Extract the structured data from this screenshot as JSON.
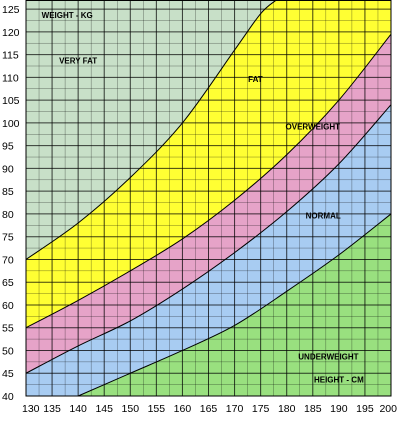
{
  "chart_data": {
    "type": "area",
    "title": "",
    "xlabel": "HEIGHT - CM",
    "ylabel": "WEIGHT - KG",
    "xlim": [
      130,
      200
    ],
    "ylim": [
      40,
      127
    ],
    "x_ticks": [
      130,
      135,
      140,
      145,
      150,
      155,
      160,
      165,
      170,
      175,
      180,
      185,
      190,
      195,
      200
    ],
    "y_ticks": [
      40,
      45,
      50,
      55,
      60,
      65,
      70,
      75,
      80,
      85,
      90,
      95,
      100,
      105,
      110,
      115,
      120,
      125
    ],
    "grid": true,
    "boundaries": [
      {
        "between": [
          "UNDERWEIGHT",
          "NORMAL"
        ],
        "x": [
          140,
          150,
          160,
          170,
          180,
          190,
          200
        ],
        "y": [
          40,
          45,
          50,
          55.5,
          63,
          71,
          80
        ]
      },
      {
        "between": [
          "NORMAL",
          "OVERWEIGHT"
        ],
        "x": [
          130,
          140,
          150,
          160,
          170,
          180,
          190,
          200
        ],
        "y": [
          45,
          51,
          56.5,
          63.5,
          71.5,
          80.5,
          91,
          104
        ]
      },
      {
        "between": [
          "OVERWEIGHT",
          "FAT"
        ],
        "x": [
          130,
          140,
          150,
          160,
          170,
          180,
          190,
          200
        ],
        "y": [
          55,
          61,
          67.5,
          74.5,
          83,
          93,
          105,
          119.5
        ]
      },
      {
        "between": [
          "FAT",
          "VERY FAT"
        ],
        "x": [
          130,
          140,
          150,
          160,
          170,
          175,
          178
        ],
        "y": [
          70,
          78,
          88,
          100,
          116,
          124,
          127
        ]
      }
    ],
    "zones": [
      {
        "name": "UNDERWEIGHT",
        "color": "#99e07f",
        "label_pos": [
          188,
          48
        ]
      },
      {
        "name": "NORMAL",
        "color": "#a8ccf2",
        "label_pos": [
          187,
          79
        ]
      },
      {
        "name": "OVERWEIGHT",
        "color": "#e6a3c8",
        "label_pos": [
          185,
          98.5
        ]
      },
      {
        "name": "FAT",
        "color": "#ffff33",
        "label_pos": [
          174,
          109
        ]
      },
      {
        "name": "VERY FAT",
        "color": "#c8e0c8",
        "label_pos": [
          140,
          113
        ]
      }
    ],
    "grid_color": "#000000",
    "axis_label_pos": {
      "ylabel": [
        133,
        123
      ],
      "xlabel": [
        190,
        43
      ]
    }
  }
}
